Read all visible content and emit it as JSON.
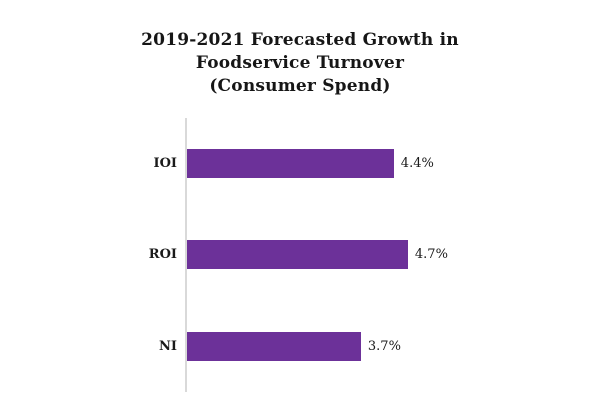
{
  "page": {
    "background_color": "#ffffff"
  },
  "chart_data": {
    "type": "bar",
    "orientation": "horizontal",
    "title": "2019-2021 Forecasted Growth in Foodservice Turnover (Consumer Spend)",
    "title_lines": [
      "2019-2021 Forecasted Growth in",
      "Foodservice Turnover",
      "(Consumer Spend)"
    ],
    "categories": [
      "IOI",
      "ROI",
      "NI"
    ],
    "values": [
      4.4,
      4.7,
      3.7
    ],
    "value_labels": [
      "4.4%",
      "4.7%",
      "3.7%"
    ],
    "xlabel": "",
    "ylabel": "",
    "xlim": [
      0,
      5
    ],
    "grid": "off",
    "legend": "none",
    "bar_color": "#6C3199",
    "axis_line_color": "#D9D9D9",
    "text_color": "#1A1A1A"
  }
}
